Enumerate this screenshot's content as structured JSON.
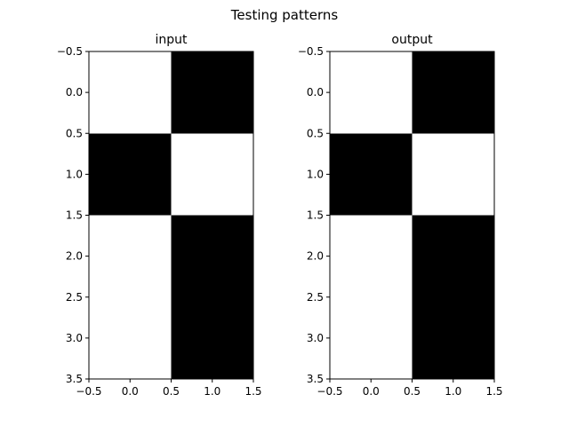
{
  "figure": {
    "suptitle": "Testing patterns"
  },
  "chart_data": [
    {
      "type": "heatmap",
      "title": "input",
      "xlabel": "",
      "ylabel": "",
      "xlim": [
        -0.5,
        1.5
      ],
      "ylim": [
        3.5,
        -0.5
      ],
      "x_ticks": [
        "−0.5",
        "0.0",
        "0.5",
        "1.0",
        "1.5"
      ],
      "y_ticks": [
        "−0.5",
        "0.0",
        "0.5",
        "1.0",
        "1.5",
        "2.0",
        "2.5",
        "3.0",
        "3.5"
      ],
      "x_tick_values": [
        -0.5,
        0,
        0.5,
        1,
        1.5
      ],
      "y_tick_values": [
        -0.5,
        0,
        0.5,
        1,
        1.5,
        2,
        2.5,
        3,
        3.5
      ],
      "colormap": {
        "0": "#ffffff",
        "1": "#000000"
      },
      "grid": false,
      "values": [
        [
          0,
          1
        ],
        [
          1,
          0
        ],
        [
          0,
          1
        ],
        [
          0,
          1
        ]
      ]
    },
    {
      "type": "heatmap",
      "title": "output",
      "xlabel": "",
      "ylabel": "",
      "xlim": [
        -0.5,
        1.5
      ],
      "ylim": [
        3.5,
        -0.5
      ],
      "x_ticks": [
        "−0.5",
        "0.0",
        "0.5",
        "1.0",
        "1.5"
      ],
      "y_ticks": [
        "−0.5",
        "0.0",
        "0.5",
        "1.0",
        "1.5",
        "2.0",
        "2.5",
        "3.0",
        "3.5"
      ],
      "x_tick_values": [
        -0.5,
        0,
        0.5,
        1,
        1.5
      ],
      "y_tick_values": [
        -0.5,
        0,
        0.5,
        1,
        1.5,
        2,
        2.5,
        3,
        3.5
      ],
      "colormap": {
        "0": "#ffffff",
        "1": "#000000"
      },
      "grid": false,
      "values": [
        [
          0,
          1
        ],
        [
          1,
          0
        ],
        [
          0,
          1
        ],
        [
          0,
          1
        ]
      ]
    }
  ]
}
